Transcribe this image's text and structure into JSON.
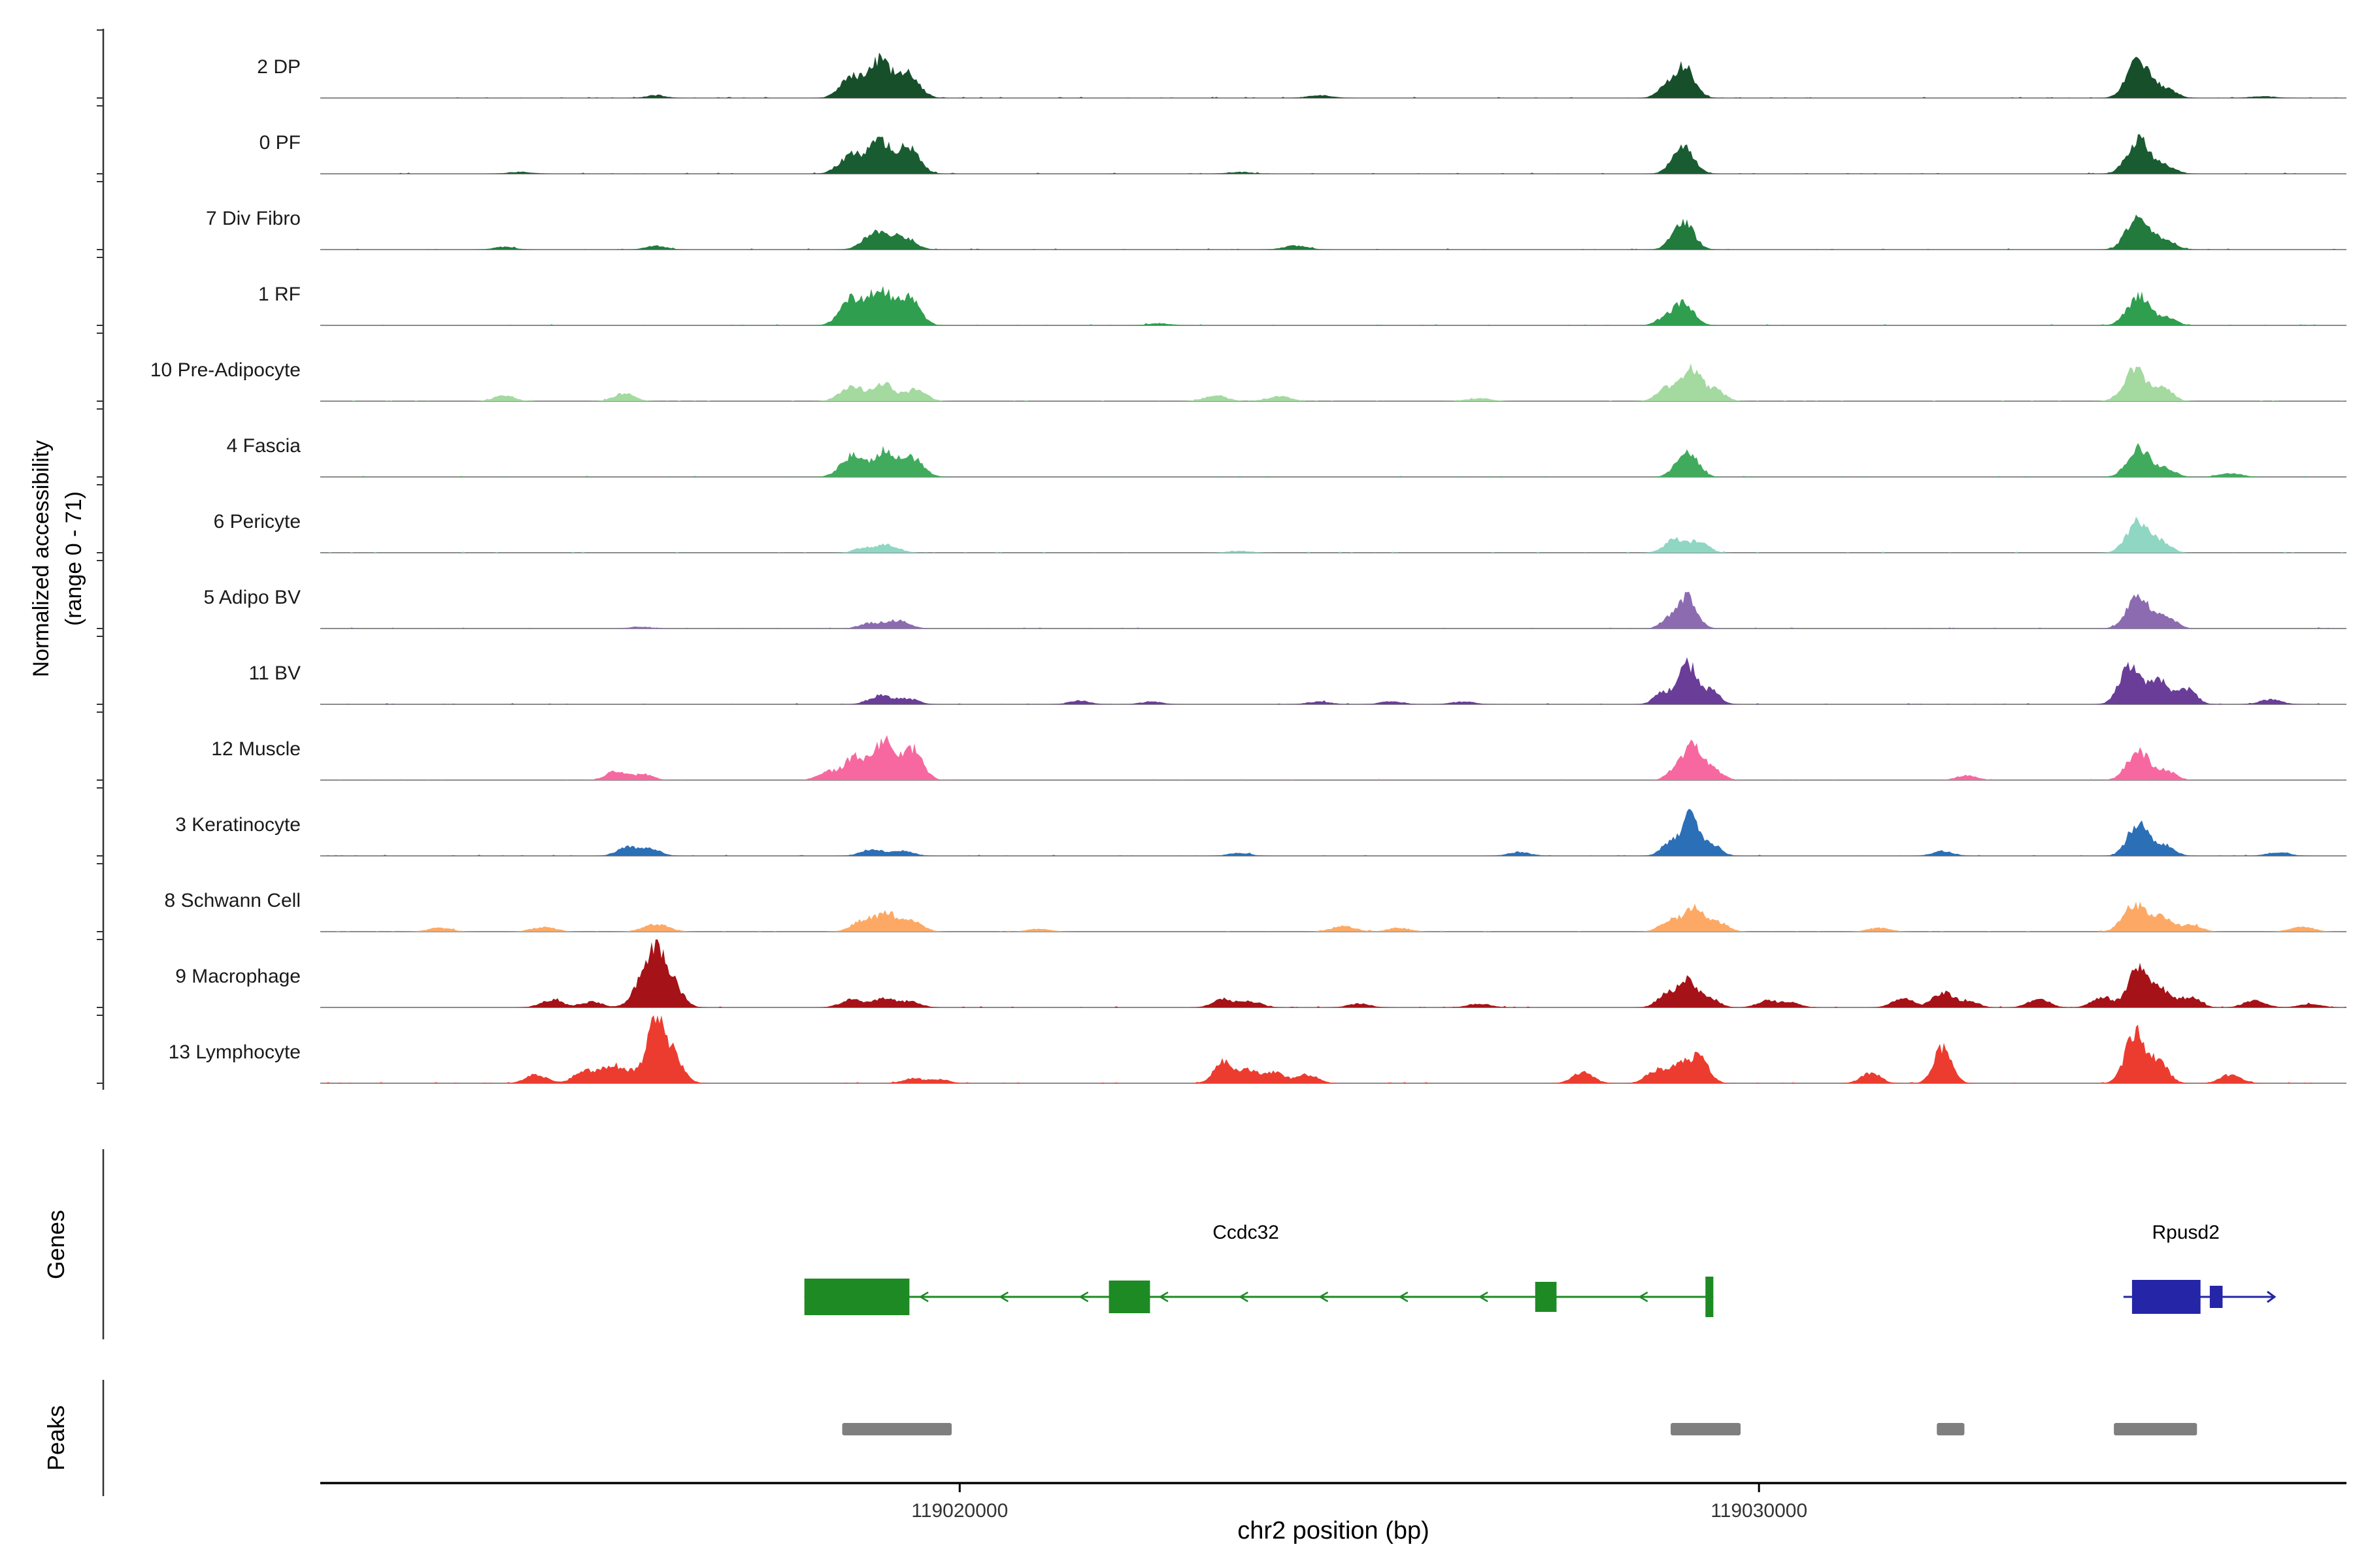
{
  "figure": {
    "y_axis_label_line1": "Normalized accessibility",
    "y_axis_label_line2": "(range 0 - 71)",
    "genes_section_label": "Genes",
    "peaks_section_label": "Peaks",
    "x_axis_label": "chr2 position (bp)",
    "x_ticks": [
      {
        "bp": 119020000,
        "label": "119020000"
      },
      {
        "bp": 119030000,
        "label": "119030000"
      }
    ],
    "region": {
      "chrom": "chr2",
      "start_bp": 119012000,
      "end_bp": 119037350
    },
    "ylim": [
      0,
      71
    ]
  },
  "chart_data": {
    "type": "area",
    "title": "",
    "xlabel": "chr2 position (bp)",
    "ylabel": "Normalized accessibility (range 0 - 71)",
    "x_range_bp": [
      119012000,
      119037350
    ],
    "ylim": [
      0,
      71
    ],
    "legend_position": "none",
    "grid": false,
    "tracks": [
      {
        "name": "2 DP",
        "color": "#174f2b",
        "peaks": [
          [
            119018650,
            140,
            22
          ],
          [
            119019000,
            130,
            38
          ],
          [
            119019350,
            140,
            26
          ],
          [
            119016200,
            120,
            3
          ],
          [
            119024500,
            150,
            3
          ],
          [
            119028800,
            100,
            8
          ],
          [
            119029050,
            130,
            34
          ],
          [
            119034750,
            140,
            40
          ],
          [
            119035100,
            120,
            10
          ],
          [
            119036300,
            150,
            2
          ]
        ]
      },
      {
        "name": "0 PF",
        "color": "#1a5c31",
        "peaks": [
          [
            119018650,
            150,
            20
          ],
          [
            119019000,
            130,
            32
          ],
          [
            119019350,
            140,
            28
          ],
          [
            119029050,
            130,
            30
          ],
          [
            119034750,
            140,
            36
          ],
          [
            119035100,
            120,
            8
          ],
          [
            119014500,
            150,
            2
          ],
          [
            119023500,
            150,
            2
          ]
        ]
      },
      {
        "name": "7 Div Fibro",
        "color": "#227a3d",
        "peaks": [
          [
            119018950,
            150,
            18
          ],
          [
            119019300,
            140,
            13
          ],
          [
            119014300,
            130,
            3
          ],
          [
            119016200,
            130,
            4
          ],
          [
            119024200,
            150,
            4
          ],
          [
            119029050,
            130,
            30
          ],
          [
            119034750,
            140,
            38
          ],
          [
            119035100,
            120,
            9
          ]
        ]
      },
      {
        "name": "1 RF",
        "color": "#2f9e4f",
        "peaks": [
          [
            119018650,
            140,
            28
          ],
          [
            119019000,
            130,
            36
          ],
          [
            119019350,
            140,
            30
          ],
          [
            119028800,
            100,
            6
          ],
          [
            119029050,
            130,
            24
          ],
          [
            119034750,
            140,
            30
          ],
          [
            119035100,
            120,
            8
          ],
          [
            119022500,
            150,
            2
          ]
        ]
      },
      {
        "name": "10 Pre-Adipocyte",
        "color": "#a4d9a0",
        "peaks": [
          [
            119014300,
            130,
            6
          ],
          [
            119015800,
            130,
            8
          ],
          [
            119018650,
            140,
            16
          ],
          [
            119019050,
            130,
            18
          ],
          [
            119019450,
            130,
            12
          ],
          [
            119023200,
            140,
            6
          ],
          [
            119024000,
            140,
            5
          ],
          [
            119026500,
            150,
            3
          ],
          [
            119028850,
            120,
            14
          ],
          [
            119029150,
            120,
            34
          ],
          [
            119029450,
            120,
            12
          ],
          [
            119034700,
            140,
            32
          ],
          [
            119035050,
            120,
            14
          ]
        ]
      },
      {
        "name": "4 Fascia",
        "color": "#41ab5d",
        "peaks": [
          [
            119018650,
            140,
            22
          ],
          [
            119019050,
            130,
            26
          ],
          [
            119019400,
            140,
            20
          ],
          [
            119029100,
            130,
            28
          ],
          [
            119034750,
            140,
            30
          ],
          [
            119035100,
            120,
            8
          ],
          [
            119035900,
            140,
            4
          ]
        ]
      },
      {
        "name": "6 Pericyte",
        "color": "#8fd6c3",
        "peaks": [
          [
            119018800,
            120,
            5
          ],
          [
            119019100,
            140,
            8
          ],
          [
            119023500,
            150,
            2
          ],
          [
            119028950,
            130,
            14
          ],
          [
            119029250,
            120,
            11
          ],
          [
            119034750,
            140,
            34
          ],
          [
            119035050,
            110,
            10
          ]
        ]
      },
      {
        "name": "5 Adipo BV",
        "color": "#8c6bb1",
        "peaks": [
          [
            119018900,
            140,
            6
          ],
          [
            119019250,
            130,
            8
          ],
          [
            119016000,
            130,
            2
          ],
          [
            119028850,
            100,
            8
          ],
          [
            119029100,
            120,
            32
          ],
          [
            119034750,
            140,
            34
          ],
          [
            119035100,
            120,
            12
          ]
        ]
      },
      {
        "name": "11 BV",
        "color": "#6a3d99",
        "peaks": [
          [
            119019000,
            140,
            9
          ],
          [
            119019350,
            130,
            6
          ],
          [
            119021500,
            130,
            4
          ],
          [
            119022400,
            130,
            3
          ],
          [
            119024500,
            140,
            3
          ],
          [
            119025400,
            140,
            3
          ],
          [
            119026300,
            140,
            3
          ],
          [
            119028800,
            110,
            12
          ],
          [
            119029100,
            110,
            44
          ],
          [
            119029400,
            110,
            14
          ],
          [
            119034650,
            130,
            42
          ],
          [
            119035000,
            120,
            26
          ],
          [
            119035350,
            120,
            16
          ],
          [
            119036400,
            140,
            5
          ]
        ]
      },
      {
        "name": "12 Muscle",
        "color": "#f768a1",
        "peaks": [
          [
            119015700,
            130,
            9
          ],
          [
            119016050,
            120,
            6
          ],
          [
            119018350,
            130,
            9
          ],
          [
            119018700,
            130,
            26
          ],
          [
            119019050,
            120,
            40
          ],
          [
            119019400,
            130,
            33
          ],
          [
            119029000,
            120,
            14
          ],
          [
            119029200,
            110,
            32
          ],
          [
            119029450,
            110,
            10
          ],
          [
            119032600,
            130,
            5
          ],
          [
            119034750,
            140,
            30
          ],
          [
            119035100,
            120,
            9
          ]
        ]
      },
      {
        "name": "3 Keratinocyte",
        "color": "#2b6fb7",
        "peaks": [
          [
            119015850,
            130,
            10
          ],
          [
            119016150,
            120,
            7
          ],
          [
            119018900,
            140,
            7
          ],
          [
            119019300,
            130,
            5
          ],
          [
            119023500,
            140,
            3
          ],
          [
            119027000,
            140,
            4
          ],
          [
            119028900,
            120,
            13
          ],
          [
            119029150,
            110,
            40
          ],
          [
            119029420,
            110,
            11
          ],
          [
            119032300,
            130,
            5
          ],
          [
            119034750,
            130,
            36
          ],
          [
            119035080,
            120,
            11
          ],
          [
            119036500,
            140,
            4
          ]
        ]
      },
      {
        "name": "8 Schwann Cell",
        "color": "#fda965",
        "peaks": [
          [
            119013500,
            150,
            4
          ],
          [
            119014800,
            150,
            5
          ],
          [
            119016200,
            160,
            8
          ],
          [
            119018800,
            140,
            12
          ],
          [
            119019100,
            130,
            18
          ],
          [
            119019420,
            130,
            10
          ],
          [
            119021000,
            140,
            3
          ],
          [
            119024800,
            150,
            6
          ],
          [
            119025500,
            140,
            4
          ],
          [
            119028900,
            130,
            12
          ],
          [
            119029200,
            120,
            25
          ],
          [
            119029500,
            120,
            9
          ],
          [
            119031500,
            140,
            4
          ],
          [
            119034700,
            140,
            28
          ],
          [
            119035050,
            130,
            16
          ],
          [
            119035420,
            120,
            7
          ],
          [
            119036800,
            150,
            5
          ]
        ]
      },
      {
        "name": "9 Macrophage",
        "color": "#a51217",
        "peaks": [
          [
            119014900,
            140,
            8
          ],
          [
            119015400,
            130,
            6
          ],
          [
            119016000,
            120,
            20
          ],
          [
            119016200,
            110,
            60
          ],
          [
            119016420,
            120,
            22
          ],
          [
            119018650,
            140,
            8
          ],
          [
            119019050,
            130,
            10
          ],
          [
            119019380,
            130,
            6
          ],
          [
            119023300,
            130,
            9
          ],
          [
            119023650,
            130,
            6
          ],
          [
            119025000,
            140,
            4
          ],
          [
            119026500,
            140,
            4
          ],
          [
            119028850,
            120,
            14
          ],
          [
            119029120,
            110,
            28
          ],
          [
            119029400,
            110,
            9
          ],
          [
            119030100,
            130,
            7
          ],
          [
            119030400,
            120,
            5
          ],
          [
            119031800,
            130,
            9
          ],
          [
            119032300,
            120,
            16
          ],
          [
            119032620,
            120,
            7
          ],
          [
            119033500,
            130,
            9
          ],
          [
            119034300,
            130,
            11
          ],
          [
            119034750,
            120,
            44
          ],
          [
            119035050,
            120,
            18
          ],
          [
            119035400,
            120,
            11
          ],
          [
            119036200,
            140,
            7
          ],
          [
            119036900,
            140,
            4
          ]
        ]
      },
      {
        "name": "13 Lymphocyte",
        "color": "#ec3c2f",
        "peaks": [
          [
            119014700,
            130,
            9
          ],
          [
            119015300,
            130,
            13
          ],
          [
            119015620,
            120,
            16
          ],
          [
            119015850,
            120,
            12
          ],
          [
            119016200,
            110,
            68
          ],
          [
            119016430,
            120,
            26
          ],
          [
            119019420,
            130,
            5
          ],
          [
            119019750,
            120,
            4
          ],
          [
            119023300,
            120,
            22
          ],
          [
            119023620,
            120,
            13
          ],
          [
            119023950,
            120,
            11
          ],
          [
            119024350,
            130,
            9
          ],
          [
            119027800,
            130,
            11
          ],
          [
            119028700,
            120,
            13
          ],
          [
            119029000,
            120,
            18
          ],
          [
            119029250,
            120,
            26
          ],
          [
            119031400,
            120,
            11
          ],
          [
            119032300,
            110,
            38
          ],
          [
            119034700,
            120,
            52
          ],
          [
            119035000,
            120,
            22
          ],
          [
            119035900,
            130,
            9
          ]
        ]
      }
    ]
  },
  "genes_track": {
    "genes": [
      {
        "name": "Ccdc32",
        "color": "#1e8a24",
        "strand": "-",
        "start_bp": 119018057,
        "end_bp": 119029429,
        "exons": [
          [
            119018057,
            119019371,
            56
          ],
          [
            119021867,
            119022381,
            50
          ],
          [
            119027200,
            119027467,
            46
          ],
          [
            119029330,
            119029429,
            62
          ]
        ],
        "label_bp": 119023580,
        "chevron_step_bp": 1000
      },
      {
        "name": "Rpusd2",
        "color": "#2525a8",
        "strand": "+",
        "start_bp": 119034560,
        "end_bp": 119036450,
        "exons": [
          [
            119034667,
            119035524,
            52
          ],
          [
            119035640,
            119035800,
            34
          ]
        ],
        "label_bp": 119035340,
        "chevron_step_bp": 600
      }
    ]
  },
  "peaks_track": {
    "color": "#7f7f7f",
    "bars_bp": [
      [
        119018530,
        119019900
      ],
      [
        119028895,
        119029770
      ],
      [
        119032225,
        119032570
      ],
      [
        119034440,
        119035480
      ]
    ]
  }
}
